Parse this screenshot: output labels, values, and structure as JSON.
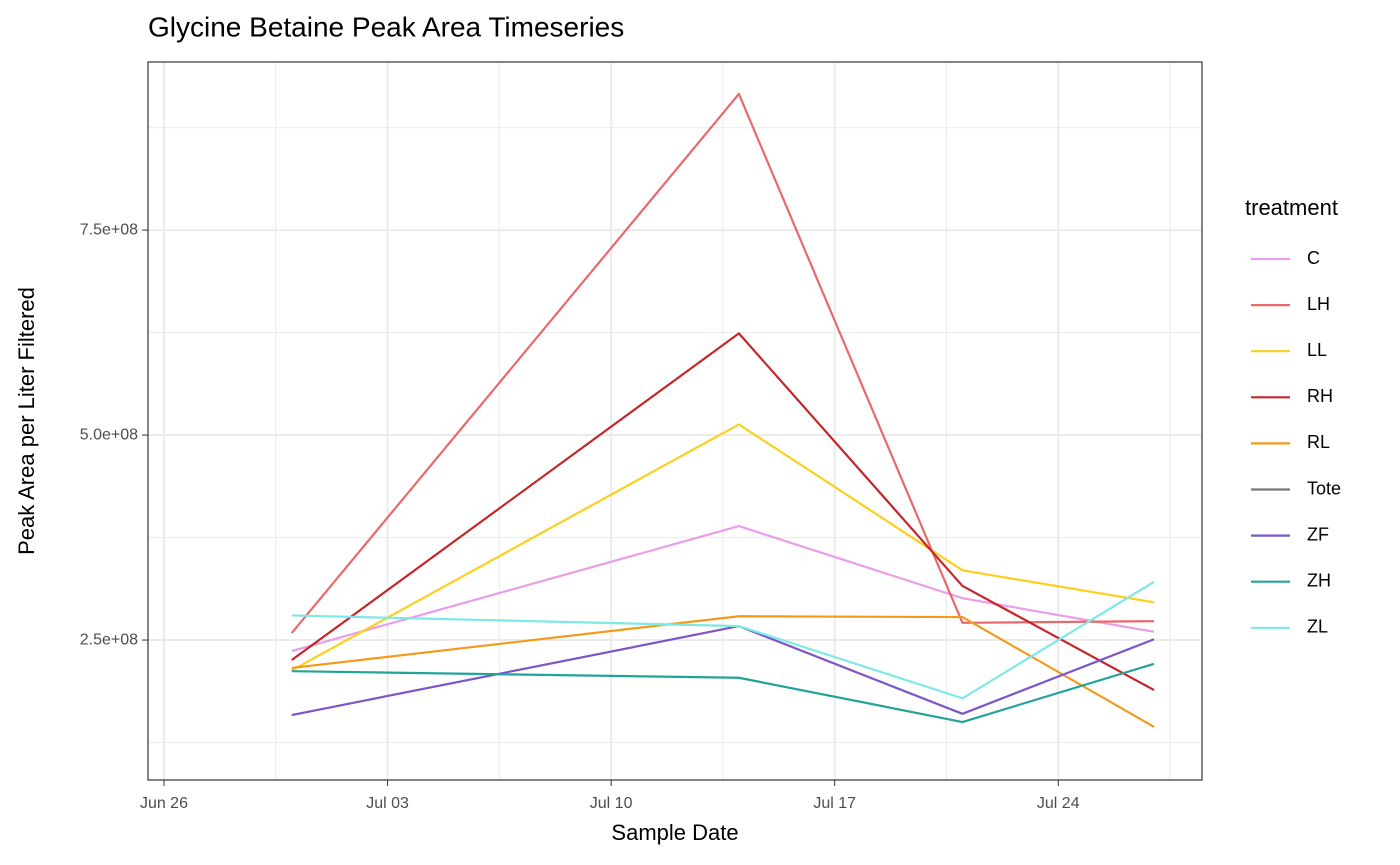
{
  "chart_data": {
    "type": "line",
    "title": "Glycine Betaine Peak Area Timeseries",
    "x_label": "Sample Date",
    "y_label": "Peak Area per Liter Filtered",
    "legend_title": "treatment",
    "legend": "right",
    "grid": true,
    "x": [
      181,
      195,
      202,
      208
    ],
    "xlim": [
      176.5,
      209.5
    ],
    "xticks": [
      {
        "value": 177,
        "label": "Jun 26"
      },
      {
        "value": 184,
        "label": "Jul 03"
      },
      {
        "value": 191,
        "label": "Jul 10"
      },
      {
        "value": 198,
        "label": "Jul 17"
      },
      {
        "value": 205,
        "label": "Jul 24"
      }
    ],
    "ylim": [
      79300000,
      955000000
    ],
    "yticks": [
      {
        "value": 250000000,
        "label": "2.5e+08"
      },
      {
        "value": 500000000,
        "label": "5.0e+08"
      },
      {
        "value": 750000000,
        "label": "7.5e+08"
      }
    ],
    "series": [
      {
        "name": "C",
        "color": "#e99ee9",
        "values": [
          236600000,
          389000000,
          301000000,
          260000000
        ]
      },
      {
        "name": "LH",
        "color": "#e8696b",
        "values": [
          258500000,
          916000000,
          271000000,
          273000000
        ]
      },
      {
        "name": "LL",
        "color": "#fccf1c",
        "values": [
          213000000,
          513000000,
          335000000,
          296000000
        ]
      },
      {
        "name": "RH",
        "color": "#c4262a",
        "values": [
          225600000,
          624000000,
          316000000,
          189000000
        ]
      },
      {
        "name": "RL",
        "color": "#f39a1c",
        "values": [
          216000000,
          279000000,
          278000000,
          144000000
        ]
      },
      {
        "name": "Tote",
        "color": "#777777",
        "values": [
          null,
          null,
          null,
          null
        ]
      },
      {
        "name": "ZF",
        "color": "#7e55c9",
        "values": [
          158500000,
          267000000,
          160000000,
          251000000
        ]
      },
      {
        "name": "ZH",
        "color": "#22a39a",
        "values": [
          212000000,
          204000000,
          150000000,
          221000000
        ]
      },
      {
        "name": "ZL",
        "color": "#7de8e6",
        "values": [
          280000000,
          267000000,
          179000000,
          321000000
        ]
      }
    ]
  }
}
